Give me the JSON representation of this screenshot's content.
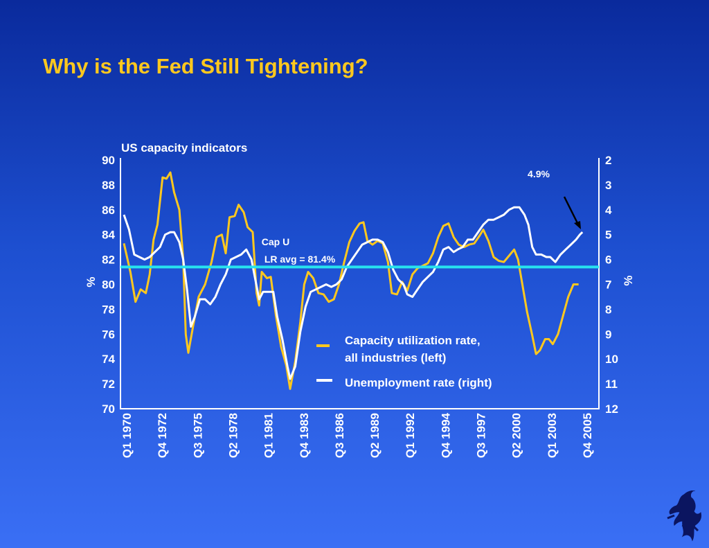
{
  "slide": {
    "title": "Why is the Fed Still Tightening?"
  },
  "chart_data": {
    "type": "line",
    "title": "US capacity indicators",
    "ylabel_left": "%",
    "ylabel_right": "%",
    "ylim_left": [
      70,
      90
    ],
    "yticks_left": [
      "90",
      "88",
      "86",
      "84",
      "82",
      "80",
      "78",
      "76",
      "74",
      "72",
      "70"
    ],
    "ylim_right_inverted": [
      2,
      12
    ],
    "yticks_right": [
      "2",
      "3",
      "4",
      "5",
      "6",
      "7",
      "8",
      "9",
      "10",
      "11",
      "12"
    ],
    "x_tick_labels": [
      "Q1 1970",
      "Q4 1972",
      "Q3 1975",
      "Q2 1978",
      "Q1 1981",
      "Q4 1983",
      "Q3 1986",
      "Q2 1989",
      "Q1 1992",
      "Q4 1994",
      "Q3 1997",
      "Q2 2000",
      "Q1 2003",
      "Q4 2005"
    ],
    "x_range": [
      1970.0,
      2005.75
    ],
    "reference_line": {
      "value": 81.4,
      "axis": "left",
      "label_lines": [
        "Cap U",
        "LR avg = 81.4%"
      ],
      "color": "#27e3ee"
    },
    "annotation": {
      "text": "4.9%",
      "x": 2005.0,
      "y": 4.9
    },
    "legend": {
      "position": "lower-right"
    },
    "series": [
      {
        "name": "Capacity utilization rate, all industries (left)",
        "axis": "left",
        "color": "#ffc81e",
        "points": [
          [
            1970.0,
            83.3
          ],
          [
            1970.5,
            81.0
          ],
          [
            1970.9,
            78.6
          ],
          [
            1971.3,
            79.6
          ],
          [
            1971.7,
            79.3
          ],
          [
            1972.0,
            80.8
          ],
          [
            1972.3,
            83.6
          ],
          [
            1972.6,
            84.8
          ],
          [
            1973.0,
            88.6
          ],
          [
            1973.3,
            88.5
          ],
          [
            1973.6,
            89.0
          ],
          [
            1973.9,
            87.4
          ],
          [
            1974.3,
            86.0
          ],
          [
            1974.6,
            82.0
          ],
          [
            1974.8,
            76.0
          ],
          [
            1975.0,
            74.5
          ],
          [
            1975.4,
            76.8
          ],
          [
            1975.8,
            79.0
          ],
          [
            1976.3,
            80.0
          ],
          [
            1976.8,
            81.8
          ],
          [
            1977.2,
            83.8
          ],
          [
            1977.6,
            84.0
          ],
          [
            1977.9,
            82.5
          ],
          [
            1978.2,
            85.4
          ],
          [
            1978.6,
            85.5
          ],
          [
            1978.9,
            86.4
          ],
          [
            1979.3,
            85.8
          ],
          [
            1979.6,
            84.6
          ],
          [
            1980.0,
            84.2
          ],
          [
            1980.3,
            79.3
          ],
          [
            1980.5,
            78.3
          ],
          [
            1980.7,
            81.0
          ],
          [
            1981.1,
            80.5
          ],
          [
            1981.4,
            80.6
          ],
          [
            1981.8,
            77.5
          ],
          [
            1982.2,
            75.0
          ],
          [
            1982.6,
            73.5
          ],
          [
            1982.9,
            71.6
          ],
          [
            1983.3,
            73.8
          ],
          [
            1983.7,
            77.0
          ],
          [
            1984.0,
            80.0
          ],
          [
            1984.3,
            81.0
          ],
          [
            1984.7,
            80.5
          ],
          [
            1985.1,
            79.3
          ],
          [
            1985.5,
            79.2
          ],
          [
            1985.9,
            78.6
          ],
          [
            1986.3,
            78.8
          ],
          [
            1986.7,
            80.0
          ],
          [
            1987.1,
            81.8
          ],
          [
            1987.5,
            83.4
          ],
          [
            1987.9,
            84.3
          ],
          [
            1988.3,
            84.9
          ],
          [
            1988.6,
            85.0
          ],
          [
            1988.9,
            83.5
          ],
          [
            1989.3,
            83.2
          ],
          [
            1989.7,
            83.5
          ],
          [
            1990.1,
            83.3
          ],
          [
            1990.5,
            81.8
          ],
          [
            1990.8,
            79.3
          ],
          [
            1991.2,
            79.2
          ],
          [
            1991.6,
            80.2
          ],
          [
            1992.0,
            79.5
          ],
          [
            1992.4,
            80.8
          ],
          [
            1992.8,
            81.3
          ],
          [
            1993.2,
            81.5
          ],
          [
            1993.6,
            81.7
          ],
          [
            1994.0,
            82.5
          ],
          [
            1994.4,
            83.8
          ],
          [
            1994.8,
            84.7
          ],
          [
            1995.2,
            84.9
          ],
          [
            1995.6,
            83.8
          ],
          [
            1996.0,
            83.2
          ],
          [
            1996.4,
            83.0
          ],
          [
            1996.8,
            83.2
          ],
          [
            1997.2,
            83.3
          ],
          [
            1997.6,
            83.9
          ],
          [
            1997.9,
            84.4
          ],
          [
            1998.3,
            83.5
          ],
          [
            1998.7,
            82.2
          ],
          [
            1999.1,
            81.9
          ],
          [
            1999.5,
            81.8
          ],
          [
            1999.9,
            82.3
          ],
          [
            2000.3,
            82.8
          ],
          [
            2000.6,
            82.0
          ],
          [
            2000.9,
            80.2
          ],
          [
            2001.3,
            77.8
          ],
          [
            2001.7,
            75.9
          ],
          [
            2002.0,
            74.4
          ],
          [
            2002.3,
            74.7
          ],
          [
            2002.7,
            75.6
          ],
          [
            2003.0,
            75.6
          ],
          [
            2003.3,
            75.2
          ],
          [
            2003.7,
            76.0
          ],
          [
            2004.1,
            77.5
          ],
          [
            2004.5,
            79.0
          ],
          [
            2004.9,
            80.0
          ],
          [
            2005.3,
            80.0
          ]
        ]
      },
      {
        "name": "Unemployment rate (right)",
        "axis": "right",
        "color": "#ffffff",
        "points": [
          [
            1970.0,
            4.2
          ],
          [
            1970.4,
            4.8
          ],
          [
            1970.8,
            5.8
          ],
          [
            1971.2,
            5.9
          ],
          [
            1971.6,
            6.0
          ],
          [
            1972.0,
            5.9
          ],
          [
            1972.4,
            5.7
          ],
          [
            1972.8,
            5.5
          ],
          [
            1973.2,
            5.0
          ],
          [
            1973.6,
            4.9
          ],
          [
            1973.9,
            4.9
          ],
          [
            1974.3,
            5.3
          ],
          [
            1974.6,
            6.0
          ],
          [
            1974.9,
            7.2
          ],
          [
            1975.2,
            8.7
          ],
          [
            1975.5,
            8.3
          ],
          [
            1975.9,
            7.6
          ],
          [
            1976.3,
            7.6
          ],
          [
            1976.7,
            7.8
          ],
          [
            1977.1,
            7.5
          ],
          [
            1977.5,
            7.0
          ],
          [
            1977.9,
            6.6
          ],
          [
            1978.3,
            6.0
          ],
          [
            1978.7,
            5.9
          ],
          [
            1979.1,
            5.8
          ],
          [
            1979.5,
            5.6
          ],
          [
            1979.9,
            6.0
          ],
          [
            1980.2,
            6.8
          ],
          [
            1980.5,
            7.6
          ],
          [
            1980.8,
            7.3
          ],
          [
            1981.2,
            7.3
          ],
          [
            1981.6,
            7.3
          ],
          [
            1981.9,
            8.3
          ],
          [
            1982.3,
            9.2
          ],
          [
            1982.7,
            10.3
          ],
          [
            1982.9,
            10.8
          ],
          [
            1983.3,
            10.3
          ],
          [
            1983.7,
            8.9
          ],
          [
            1984.1,
            7.9
          ],
          [
            1984.5,
            7.3
          ],
          [
            1984.9,
            7.2
          ],
          [
            1985.3,
            7.1
          ],
          [
            1985.7,
            7.0
          ],
          [
            1986.1,
            7.1
          ],
          [
            1986.5,
            7.0
          ],
          [
            1986.9,
            6.8
          ],
          [
            1987.3,
            6.3
          ],
          [
            1987.7,
            6.0
          ],
          [
            1988.1,
            5.7
          ],
          [
            1988.5,
            5.4
          ],
          [
            1988.9,
            5.3
          ],
          [
            1989.3,
            5.2
          ],
          [
            1989.7,
            5.2
          ],
          [
            1990.1,
            5.3
          ],
          [
            1990.5,
            5.7
          ],
          [
            1990.9,
            6.4
          ],
          [
            1991.3,
            6.8
          ],
          [
            1991.7,
            7.0
          ],
          [
            1992.0,
            7.4
          ],
          [
            1992.4,
            7.5
          ],
          [
            1992.8,
            7.2
          ],
          [
            1993.2,
            6.9
          ],
          [
            1993.6,
            6.7
          ],
          [
            1994.0,
            6.5
          ],
          [
            1994.4,
            6.1
          ],
          [
            1994.8,
            5.6
          ],
          [
            1995.2,
            5.5
          ],
          [
            1995.6,
            5.7
          ],
          [
            1995.9,
            5.6
          ],
          [
            1996.3,
            5.5
          ],
          [
            1996.7,
            5.2
          ],
          [
            1997.1,
            5.2
          ],
          [
            1997.5,
            4.9
          ],
          [
            1997.9,
            4.6
          ],
          [
            1998.3,
            4.4
          ],
          [
            1998.7,
            4.4
          ],
          [
            1999.1,
            4.3
          ],
          [
            1999.5,
            4.2
          ],
          [
            1999.9,
            4.0
          ],
          [
            2000.3,
            3.9
          ],
          [
            2000.7,
            3.9
          ],
          [
            2001.1,
            4.2
          ],
          [
            2001.4,
            4.6
          ],
          [
            2001.7,
            5.5
          ],
          [
            2002.0,
            5.8
          ],
          [
            2002.4,
            5.8
          ],
          [
            2002.8,
            5.9
          ],
          [
            2003.1,
            5.9
          ],
          [
            2003.5,
            6.1
          ],
          [
            2003.9,
            5.8
          ],
          [
            2004.3,
            5.6
          ],
          [
            2004.7,
            5.4
          ],
          [
            2005.1,
            5.2
          ],
          [
            2005.4,
            5.0
          ],
          [
            2005.6,
            4.9
          ]
        ]
      }
    ]
  }
}
